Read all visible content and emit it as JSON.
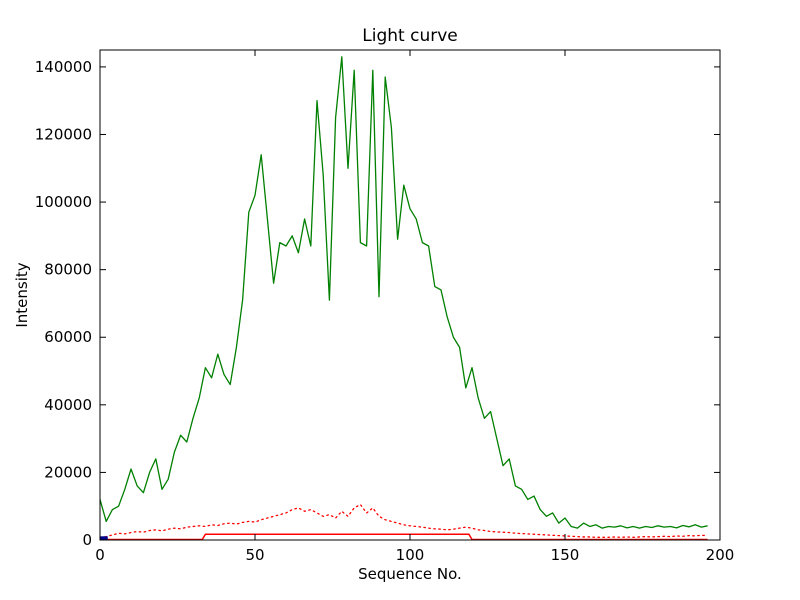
{
  "chart_data": {
    "type": "line",
    "title": "Light curve",
    "xlabel": "Sequence No.",
    "ylabel": "Intensity",
    "xlim": [
      0,
      200
    ],
    "ylim": [
      0,
      145000
    ],
    "x_ticks": [
      0,
      50,
      100,
      150,
      200
    ],
    "y_ticks": [
      0,
      20000,
      40000,
      60000,
      80000,
      100000,
      120000,
      140000
    ],
    "grid": false,
    "legend_position": "none",
    "series": [
      {
        "name": "green-light-curve",
        "color": "#008000",
        "style": "solid",
        "width": 1.3,
        "x": [
          0,
          2,
          4,
          6,
          8,
          10,
          12,
          14,
          16,
          18,
          20,
          22,
          24,
          26,
          28,
          30,
          32,
          34,
          36,
          38,
          40,
          42,
          44,
          46,
          48,
          50,
          52,
          54,
          56,
          58,
          60,
          62,
          64,
          66,
          68,
          70,
          72,
          74,
          76,
          78,
          80,
          82,
          84,
          86,
          88,
          90,
          92,
          94,
          96,
          98,
          100,
          102,
          104,
          106,
          108,
          110,
          112,
          114,
          116,
          118,
          120,
          122,
          124,
          126,
          128,
          130,
          132,
          134,
          136,
          138,
          140,
          142,
          144,
          146,
          148,
          150,
          152,
          154,
          156,
          158,
          160,
          162,
          164,
          166,
          168,
          170,
          172,
          174,
          176,
          178,
          180,
          182,
          184,
          186,
          188,
          190,
          192,
          194,
          196
        ],
        "y": [
          12000,
          5500,
          9000,
          10000,
          15000,
          21000,
          16000,
          14000,
          20000,
          24000,
          15000,
          18000,
          26000,
          31000,
          29000,
          36000,
          42000,
          51000,
          48000,
          55000,
          49000,
          46000,
          57000,
          71000,
          97000,
          102000,
          114000,
          95000,
          76000,
          88000,
          87000,
          90000,
          85000,
          95000,
          87000,
          130000,
          108000,
          71000,
          125000,
          143000,
          110000,
          139000,
          88000,
          87000,
          139000,
          72000,
          137000,
          122000,
          89000,
          105000,
          98000,
          95000,
          88000,
          87000,
          75000,
          74000,
          66000,
          60000,
          57000,
          45000,
          51000,
          42000,
          36000,
          38000,
          30000,
          22000,
          24000,
          16000,
          15000,
          12000,
          13000,
          9000,
          7000,
          8000,
          5000,
          6500,
          4000,
          3500,
          5000,
          4000,
          4500,
          3500,
          4000,
          3800,
          4200,
          3600,
          4000,
          3500,
          4000,
          3700,
          4200,
          3800,
          4000,
          3600,
          4300,
          3900,
          4500,
          3800,
          4200
        ]
      },
      {
        "name": "red-dotted-curve",
        "color": "#ff0000",
        "style": "dotted",
        "width": 1.3,
        "x": [
          0,
          2,
          4,
          6,
          8,
          10,
          12,
          14,
          16,
          18,
          20,
          22,
          24,
          26,
          28,
          30,
          32,
          34,
          36,
          38,
          40,
          42,
          44,
          46,
          48,
          50,
          52,
          54,
          56,
          58,
          60,
          62,
          64,
          66,
          68,
          70,
          72,
          74,
          76,
          78,
          80,
          82,
          84,
          86,
          88,
          90,
          92,
          94,
          96,
          98,
          100,
          102,
          104,
          106,
          108,
          110,
          112,
          114,
          116,
          118,
          120,
          122,
          124,
          126,
          128,
          130,
          132,
          134,
          136,
          138,
          140,
          142,
          144,
          146,
          148,
          150,
          152,
          154,
          156,
          158,
          160,
          162,
          164,
          166,
          168,
          170,
          172,
          174,
          176,
          178,
          180,
          182,
          184,
          186,
          188,
          190,
          192,
          194,
          196
        ],
        "y": [
          800,
          1000,
          1500,
          2000,
          1800,
          2200,
          2500,
          2300,
          2800,
          3000,
          2700,
          3200,
          3500,
          3300,
          3800,
          4000,
          4200,
          4000,
          4500,
          4300,
          4800,
          5000,
          4700,
          5200,
          5500,
          5300,
          6000,
          6500,
          7000,
          7500,
          8000,
          9000,
          9500,
          8500,
          9000,
          8000,
          7000,
          7500,
          6500,
          8500,
          7000,
          9500,
          10500,
          8000,
          9500,
          7000,
          6000,
          5500,
          5000,
          4500,
          4200,
          4000,
          3800,
          3500,
          3300,
          3200,
          3000,
          3200,
          3500,
          3800,
          3500,
          3000,
          2800,
          2500,
          2400,
          2300,
          2200,
          2000,
          1900,
          1800,
          1700,
          1600,
          1500,
          1400,
          1300,
          1200,
          1100,
          1000,
          900,
          900,
          800,
          800,
          800,
          900,
          800,
          900,
          800,
          900,
          1000,
          900,
          1000,
          1100,
          1000,
          1200,
          1100,
          1300,
          1200,
          1400,
          1300
        ]
      },
      {
        "name": "red-solid-plateau",
        "color": "#ff0000",
        "style": "solid",
        "width": 1.5,
        "x": [
          0,
          33,
          34,
          119,
          120,
          196
        ],
        "y": [
          150,
          150,
          1700,
          1700,
          150,
          150
        ]
      },
      {
        "name": "blue-start-marker",
        "color": "#00008b",
        "style": "solid",
        "width": 4,
        "x": [
          0,
          2.5
        ],
        "y": [
          500,
          500
        ]
      }
    ]
  }
}
